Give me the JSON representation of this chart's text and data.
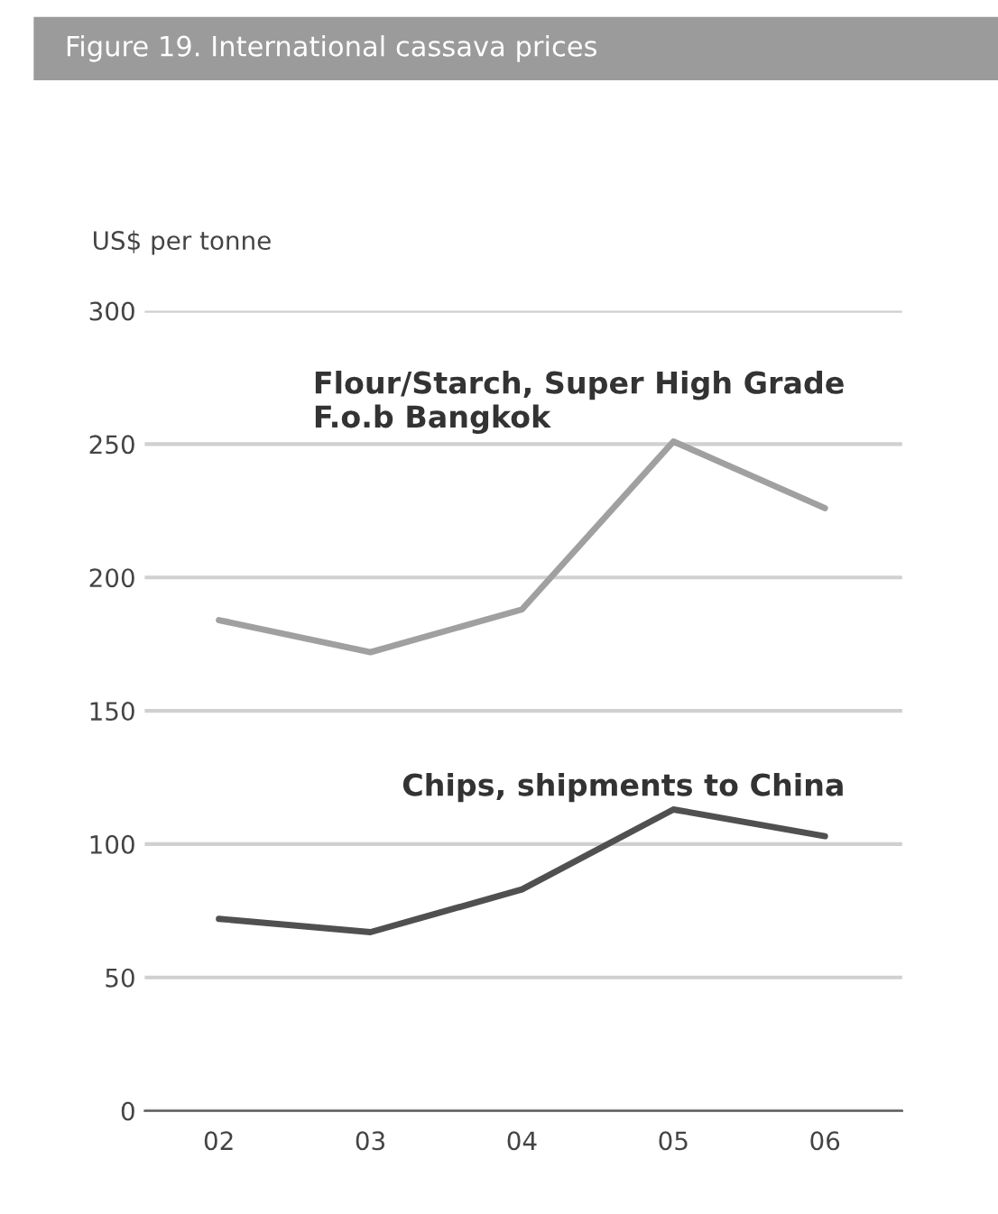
{
  "chart_data": {
    "type": "line",
    "title": "Figure 19. International cassava prices",
    "ylabel": "US$ per tonne",
    "categories": [
      "02",
      "03",
      "04",
      "05",
      "06"
    ],
    "series": [
      {
        "name": "Flour/Starch, Super High Grade\nF.o.b Bangkok",
        "color": "#a0a0a0",
        "values": [
          184,
          172,
          188,
          251,
          226
        ]
      },
      {
        "name": "Chips, shipments to China",
        "color": "#505050",
        "values": [
          72,
          67,
          83,
          113,
          103
        ]
      }
    ],
    "ylim": [
      0,
      300
    ],
    "yticks": [
      0,
      50,
      100,
      150,
      200,
      250,
      300
    ],
    "grid": "y",
    "legend": false,
    "marker": "none",
    "line_style": "solid"
  }
}
